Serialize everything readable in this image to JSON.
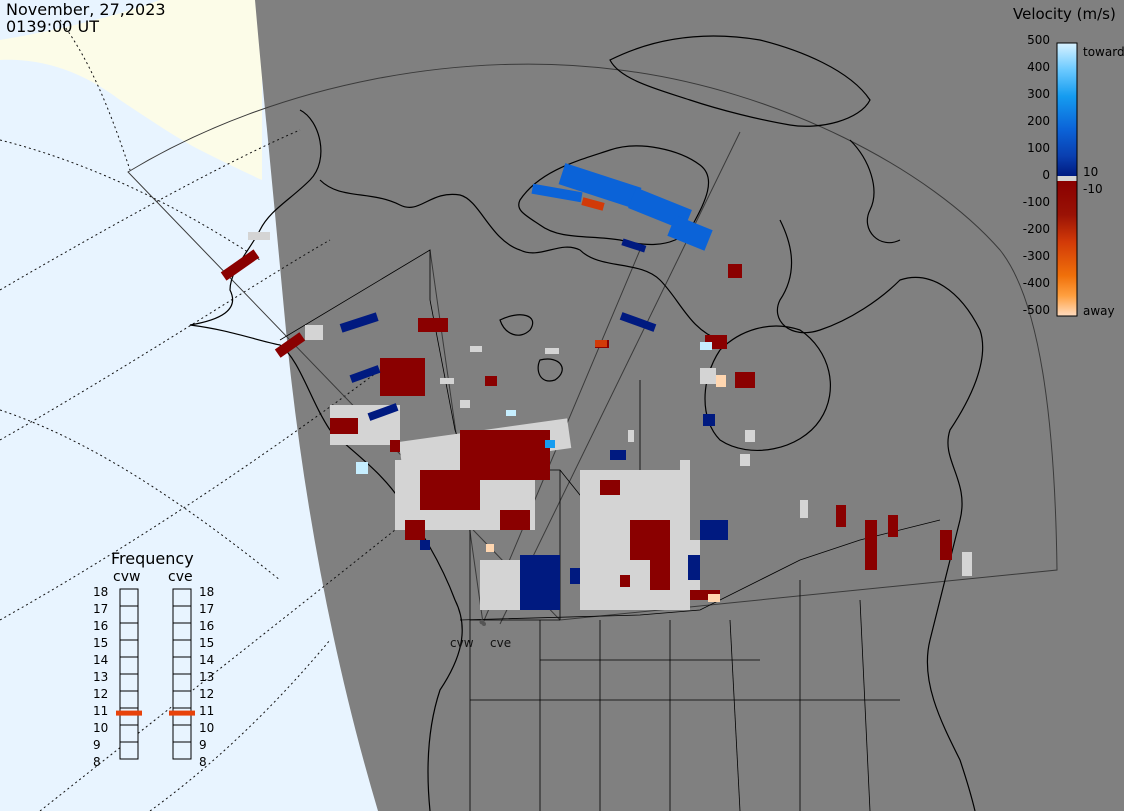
{
  "header": {
    "date": "November, 27,2023",
    "time": "0139:00 UT"
  },
  "colorbar": {
    "title": "Velocity (m/s)",
    "ticks": [
      "500",
      "400",
      "300",
      "200",
      "100",
      "0",
      "-100",
      "-200",
      "-300",
      "-400",
      "-500"
    ],
    "toward_label": "toward",
    "away_label": "away",
    "small_pos_label": "10",
    "small_neg_label": "-10",
    "colors": {
      "toward": [
        "#c6eeff",
        "#6ccaff",
        "#159cf0",
        "#0b63d8",
        "#0a3fb0",
        "#001a80"
      ],
      "away": [
        "#8a0000",
        "#8a0000",
        "#a01a0a",
        "#d23a08",
        "#f0700a",
        "#ffa040",
        "#ffd6b0"
      ]
    }
  },
  "frequency": {
    "title": "Frequency",
    "radars": [
      {
        "name": "cvw",
        "freq_mhz": 10.7
      },
      {
        "name": "cve",
        "freq_mhz": 10.7
      }
    ],
    "scale": [
      "18",
      "17",
      "16",
      "15",
      "14",
      "13",
      "12",
      "11",
      "10",
      "9",
      "8"
    ],
    "indicator_color": "#e8420a"
  },
  "sites": [
    {
      "name": "cvw"
    },
    {
      "name": "cve"
    }
  ],
  "map_colors": {
    "ocean": "#e8f4ff",
    "land_day": "#fcfce8",
    "night": "#808080",
    "ground_scatter": "#d4d4d4"
  }
}
